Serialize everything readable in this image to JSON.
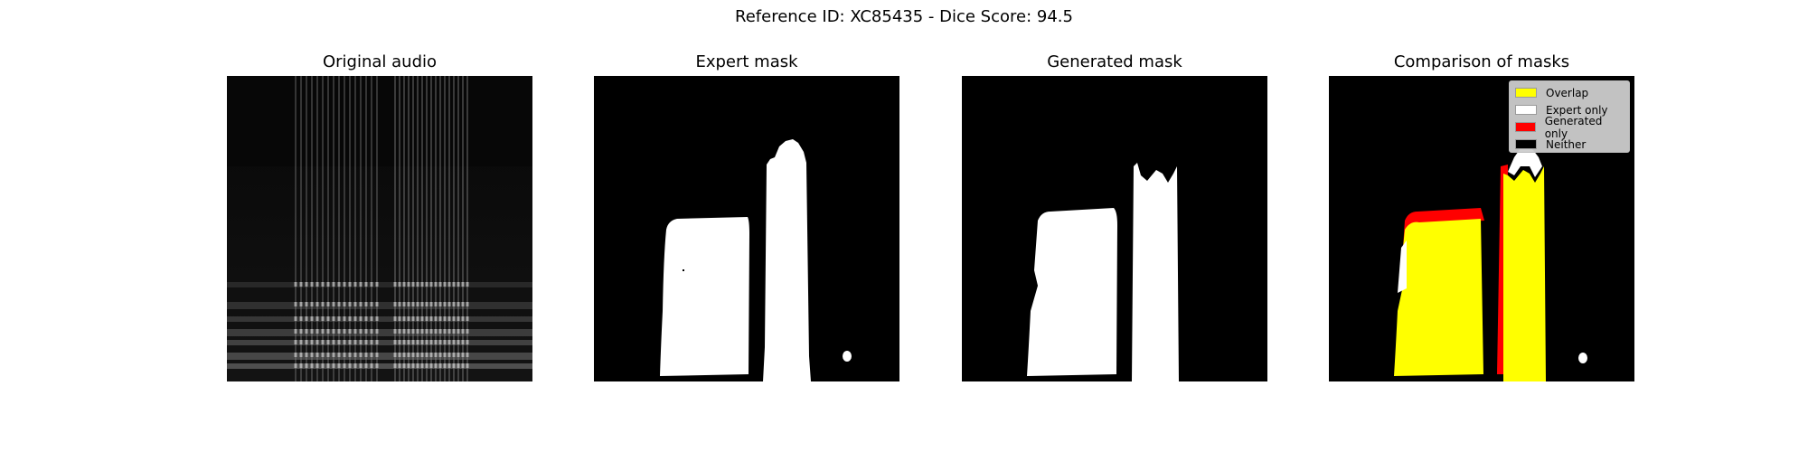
{
  "figure": {
    "suptitle": "Reference ID: XC85435 - Dice Score: 94.5"
  },
  "panels": [
    {
      "title": "Original audio"
    },
    {
      "title": "Expert mask"
    },
    {
      "title": "Generated mask"
    },
    {
      "title": "Comparison of masks"
    }
  ],
  "legend": {
    "placement": "upper right",
    "items": [
      {
        "label": "Overlap",
        "color": "#ffff00"
      },
      {
        "label": "Expert only",
        "color": "#ffffff"
      },
      {
        "label": "Generated only",
        "color": "#ff0000"
      },
      {
        "label": "Neither",
        "color": "#000000"
      }
    ]
  },
  "colors": {
    "background": "#000000",
    "mask": "#ffffff"
  }
}
